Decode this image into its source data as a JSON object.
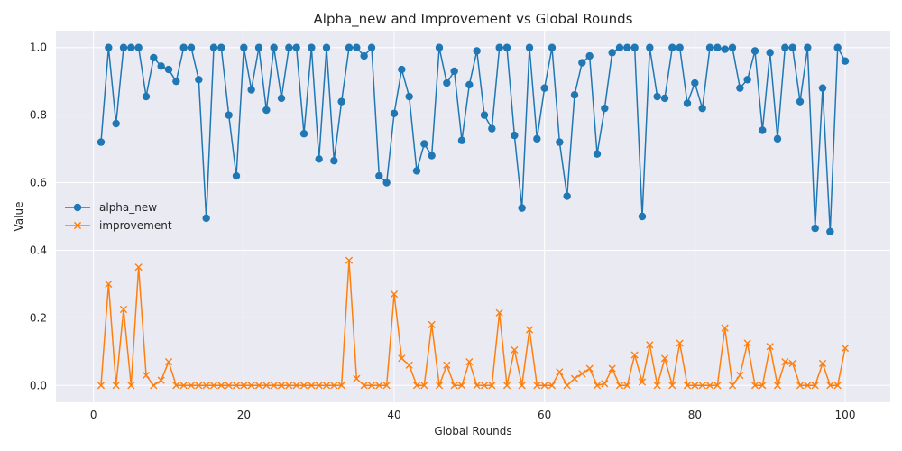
{
  "chart_data": {
    "type": "line",
    "title": "Alpha_new and Improvement vs Global Rounds",
    "xlabel": "Global Rounds",
    "ylabel": "Value",
    "xlim": [
      -5,
      106
    ],
    "ylim": [
      -0.05,
      1.05
    ],
    "xticks": [
      0,
      20,
      40,
      60,
      80,
      100
    ],
    "yticks": [
      0.0,
      0.2,
      0.4,
      0.6,
      0.8,
      1.0
    ],
    "xtick_labels": [
      "0",
      "20",
      "40",
      "60",
      "80",
      "100"
    ],
    "ytick_labels": [
      "0.0",
      "0.2",
      "0.4",
      "0.6",
      "0.8",
      "1.0"
    ],
    "grid": true,
    "legend_position": "center-left",
    "x": [
      1,
      2,
      3,
      4,
      5,
      6,
      7,
      8,
      9,
      10,
      11,
      12,
      13,
      14,
      15,
      16,
      17,
      18,
      19,
      20,
      21,
      22,
      23,
      24,
      25,
      26,
      27,
      28,
      29,
      30,
      31,
      32,
      33,
      34,
      35,
      36,
      37,
      38,
      39,
      40,
      41,
      42,
      43,
      44,
      45,
      46,
      47,
      48,
      49,
      50,
      51,
      52,
      53,
      54,
      55,
      56,
      57,
      58,
      59,
      60,
      61,
      62,
      63,
      64,
      65,
      66,
      67,
      68,
      69,
      70,
      71,
      72,
      73,
      74,
      75,
      76,
      77,
      78,
      79,
      80,
      81,
      82,
      83,
      84,
      85,
      86,
      87,
      88,
      89,
      90,
      91,
      92,
      93,
      94,
      95,
      96,
      97,
      98,
      99,
      100
    ],
    "series": [
      {
        "name": "alpha_new",
        "color": "#1f77b4",
        "marker": "circle",
        "values": [
          0.72,
          1.0,
          0.775,
          1.0,
          1.0,
          1.0,
          0.855,
          0.97,
          0.945,
          0.935,
          0.9,
          1.0,
          1.0,
          0.905,
          0.495,
          1.0,
          1.0,
          0.8,
          0.62,
          1.0,
          0.875,
          1.0,
          0.815,
          1.0,
          0.85,
          1.0,
          1.0,
          0.745,
          1.0,
          0.67,
          1.0,
          0.665,
          0.84,
          1.0,
          1.0,
          0.975,
          1.0,
          0.62,
          0.6,
          0.805,
          0.935,
          0.855,
          0.635,
          0.715,
          0.68,
          1.0,
          0.895,
          0.93,
          0.725,
          0.89,
          0.99,
          0.8,
          0.76,
          1.0,
          1.0,
          0.74,
          0.525,
          1.0,
          0.73,
          0.88,
          1.0,
          0.72,
          0.56,
          0.86,
          0.955,
          0.975,
          0.685,
          0.82,
          0.985,
          1.0,
          1.0,
          1.0,
          0.5,
          1.0,
          0.855,
          0.85,
          1.0,
          1.0,
          0.835,
          0.895,
          0.82,
          1.0,
          1.0,
          0.995,
          1.0,
          0.88,
          0.905,
          0.99,
          0.755,
          0.985,
          0.73,
          1.0,
          1.0,
          0.84,
          1.0,
          0.465,
          0.88,
          0.455,
          1.0,
          0.96
        ]
      },
      {
        "name": "improvement",
        "color": "#ff7f0e",
        "marker": "x",
        "values": [
          0.0,
          0.3,
          0.0,
          0.225,
          0.0,
          0.35,
          0.03,
          0.0,
          0.015,
          0.07,
          0.0,
          0.0,
          0.0,
          0.0,
          0.0,
          0.0,
          0.0,
          0.0,
          0.0,
          0.0,
          0.0,
          0.0,
          0.0,
          0.0,
          0.0,
          0.0,
          0.0,
          0.0,
          0.0,
          0.0,
          0.0,
          0.0,
          0.0,
          0.37,
          0.02,
          0.0,
          0.0,
          0.0,
          0.0,
          0.27,
          0.08,
          0.06,
          0.0,
          0.0,
          0.18,
          0.0,
          0.06,
          0.0,
          0.0,
          0.07,
          0.0,
          0.0,
          0.0,
          0.215,
          0.0,
          0.105,
          0.0,
          0.165,
          0.0,
          0.0,
          0.0,
          0.04,
          0.0,
          0.02,
          0.035,
          0.05,
          0.0,
          0.005,
          0.05,
          0.0,
          0.0,
          0.09,
          0.01,
          0.12,
          0.0,
          0.08,
          0.0,
          0.125,
          0.0,
          0.0,
          0.0,
          0.0,
          0.0,
          0.17,
          0.0,
          0.03,
          0.125,
          0.0,
          0.0,
          0.115,
          0.0,
          0.07,
          0.065,
          0.0,
          0.0,
          0.0,
          0.065,
          0.0,
          0.0,
          0.11
        ]
      }
    ]
  }
}
